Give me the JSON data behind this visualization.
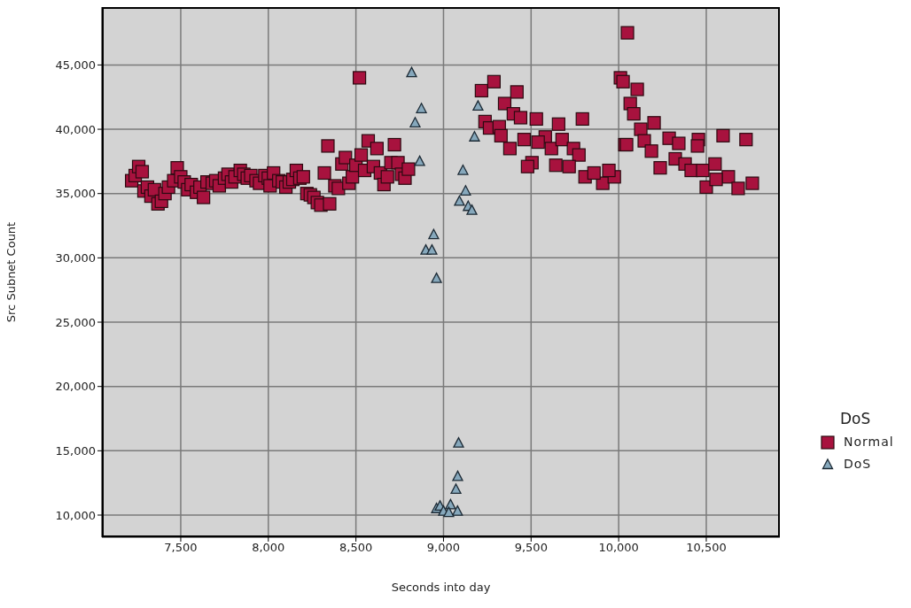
{
  "chart_data": {
    "type": "scatter",
    "xlabel": "Seconds into day",
    "ylabel": "Src Subnet Count",
    "legend_title": "DoS",
    "legend": "right",
    "grid": true,
    "xlim": [
      7050,
      10920
    ],
    "ylim": [
      8280,
      49500
    ],
    "xticks": [
      {
        "value": 7500,
        "label": "7,500"
      },
      {
        "value": 8000,
        "label": "8,000"
      },
      {
        "value": 8500,
        "label": "8,500"
      },
      {
        "value": 9000,
        "label": "9,000"
      },
      {
        "value": 9500,
        "label": "9,500"
      },
      {
        "value": 10000,
        "label": "10,000"
      },
      {
        "value": 10500,
        "label": "10,500"
      }
    ],
    "yticks": [
      {
        "value": 10000,
        "label": "10,000"
      },
      {
        "value": 15000,
        "label": "15,000"
      },
      {
        "value": 20000,
        "label": "20,000"
      },
      {
        "value": 25000,
        "label": "25,000"
      },
      {
        "value": 30000,
        "label": "30,000"
      },
      {
        "value": 35000,
        "label": "35,000"
      },
      {
        "value": 40000,
        "label": "40,000"
      },
      {
        "value": 45000,
        "label": "45,000"
      }
    ],
    "series": [
      {
        "name": "Normal",
        "color": "#a8123e",
        "marker": "square",
        "x": [
          7220,
          7240,
          7260,
          7280,
          7290,
          7310,
          7330,
          7350,
          7370,
          7390,
          7410,
          7430,
          7460,
          7480,
          7500,
          7520,
          7540,
          7560,
          7590,
          7610,
          7630,
          7650,
          7680,
          7700,
          7720,
          7750,
          7770,
          7790,
          7810,
          7840,
          7860,
          7880,
          7900,
          7930,
          7950,
          7980,
          8000,
          8010,
          8030,
          8060,
          8080,
          8100,
          8120,
          8140,
          8160,
          8180,
          8200,
          8220,
          8240,
          8260,
          8280,
          8300,
          8320,
          8340,
          8350,
          8380,
          8400,
          8420,
          8440,
          8460,
          8480,
          8500,
          8520,
          8530,
          8550,
          8570,
          8600,
          8620,
          8640,
          8660,
          8680,
          8700,
          8720,
          8740,
          8760,
          8780,
          8800,
          9217,
          9288,
          9419,
          9349,
          9399,
          9440,
          9530,
          9657,
          9793,
          9237,
          9263,
          9318,
          9328,
          9379,
          9460,
          9581,
          9540,
          9616,
          9677,
          9742,
          9773,
          9505,
          9480,
          9641,
          9717,
          9808,
          9909,
          9975,
          9944,
          9859,
          10035,
          10010,
          10025,
          10106,
          10066,
          10086,
          10126,
          10202,
          10045,
          10146,
          10288,
          10343,
          10455,
          10450,
          10596,
          10727,
          10187,
          10237,
          10323,
          10379,
          10414,
          10480,
          10550,
          10500,
          10626,
          10682,
          10763,
          10556,
          10050
        ],
        "values": [
          36000,
          36400,
          37100,
          36700,
          35200,
          35500,
          34800,
          35300,
          34200,
          34400,
          35000,
          35500,
          36000,
          37000,
          36300,
          35900,
          35300,
          35700,
          35100,
          35500,
          34700,
          35900,
          35800,
          36000,
          35600,
          36200,
          36500,
          35900,
          36300,
          36800,
          36500,
          36200,
          36400,
          36000,
          35800,
          36400,
          36200,
          35600,
          36600,
          36000,
          35900,
          35500,
          35900,
          36100,
          36800,
          36200,
          36300,
          35000,
          34900,
          34700,
          34300,
          34100,
          36600,
          38700,
          34200,
          35600,
          35400,
          37300,
          37800,
          35800,
          36300,
          37200,
          44000,
          38000,
          36800,
          39100,
          37100,
          38500,
          36600,
          35700,
          36300,
          37400,
          38800,
          37400,
          36500,
          36200,
          36900,
          43000,
          43700,
          42900,
          42000,
          41200,
          40900,
          40800,
          40400,
          40800,
          40600,
          40100,
          40200,
          39500,
          38500,
          39200,
          39400,
          39000,
          38500,
          39200,
          38500,
          38000,
          37400,
          37100,
          37200,
          37100,
          36300,
          35800,
          36300,
          36800,
          36600,
          38800,
          44000,
          43700,
          43100,
          42000,
          41200,
          40000,
          40500,
          38800,
          39100,
          39300,
          38900,
          39200,
          38700,
          39500,
          39200,
          38300,
          37000,
          37700,
          37300,
          36800,
          36800,
          37300,
          35500,
          36300,
          35400,
          35800,
          36100,
          47500
        ]
      },
      {
        "name": "DoS",
        "color": "#86a8bc",
        "marker": "triangle",
        "x": [
          8818,
          8874,
          8838,
          8864,
          9197,
          9177,
          9111,
          9126,
          9091,
          9141,
          9162,
          8944,
          8899,
          8934,
          8960,
          9086,
          9081,
          9071,
          8960,
          8980,
          9000,
          9020,
          9040,
          9060,
          9080,
          9030
        ],
        "values": [
          44400,
          41600,
          40500,
          37500,
          41800,
          39400,
          36800,
          35200,
          34400,
          34000,
          33700,
          31800,
          30600,
          30600,
          28400,
          15600,
          13000,
          12000,
          10500,
          10700,
          10300,
          null,
          10800,
          null,
          10300,
          10200
        ]
      }
    ]
  }
}
